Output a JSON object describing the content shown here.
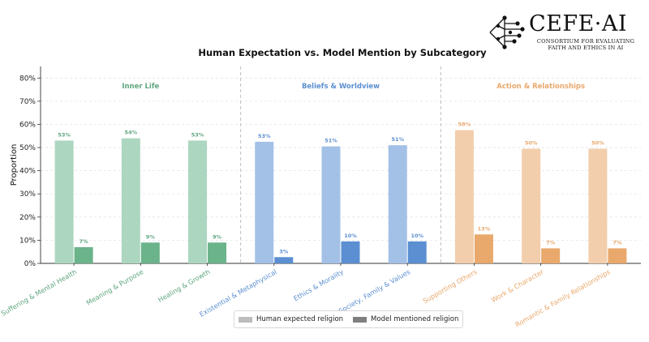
{
  "logo": {
    "title": "CEFE·AI",
    "subtitle_line1": "Consortium for Evaluating",
    "subtitle_line2": "Faith and Ethics in AI"
  },
  "chart_data": {
    "type": "bar",
    "title": "Human Expectation vs. Model Mention by Subcategory",
    "xlabel": "",
    "ylabel": "Proportion",
    "ylim": [
      0,
      0.85
    ],
    "yticks": [
      0,
      0.1,
      0.2,
      0.3,
      0.4,
      0.5,
      0.6,
      0.7,
      0.8
    ],
    "ytick_labels": [
      "0%",
      "10%",
      "20%",
      "30%",
      "40%",
      "50%",
      "60%",
      "70%",
      "80%"
    ],
    "grid": "horizontal dashed",
    "legend_position": "bottom-center",
    "groups": [
      {
        "name": "Inner Life",
        "color": "#6bb38b",
        "light": "#acd6c0",
        "label_color": "#5fa57e"
      },
      {
        "name": "Beliefs & Worldview",
        "color": "#5b8fd1",
        "light": "#a3c0e7",
        "label_color": "#5b8fd1"
      },
      {
        "name": "Action & Relationships",
        "color": "#e9a86c",
        "light": "#f2ceac",
        "label_color": "#e9a86c"
      }
    ],
    "categories": [
      {
        "label": "Suffering & Mental Health",
        "group": 0,
        "human": 0.53,
        "model": 0.07,
        "human_label": "53%",
        "model_label": "7%"
      },
      {
        "label": "Meaning & Purpose",
        "group": 0,
        "human": 0.54,
        "model": 0.09,
        "human_label": "54%",
        "model_label": "9%"
      },
      {
        "label": "Healing & Growth",
        "group": 0,
        "human": 0.53,
        "model": 0.09,
        "human_label": "53%",
        "model_label": "9%"
      },
      {
        "label": "Existential & Metaphysical",
        "group": 1,
        "human": 0.525,
        "model": 0.027,
        "human_label": "53%",
        "model_label": "3%"
      },
      {
        "label": "Ethics & Morality",
        "group": 1,
        "human": 0.505,
        "model": 0.095,
        "human_label": "51%",
        "model_label": "10%"
      },
      {
        "label": "Society, Family & Values",
        "group": 1,
        "human": 0.51,
        "model": 0.095,
        "human_label": "51%",
        "model_label": "10%"
      },
      {
        "label": "Supporting Others",
        "group": 2,
        "human": 0.575,
        "model": 0.125,
        "human_label": "58%",
        "model_label": "13%"
      },
      {
        "label": "Work & Character",
        "group": 2,
        "human": 0.495,
        "model": 0.065,
        "human_label": "50%",
        "model_label": "7%"
      },
      {
        "label": "Romantic & Family Relationships",
        "group": 2,
        "human": 0.495,
        "model": 0.065,
        "human_label": "50%",
        "model_label": "7%"
      }
    ],
    "series": [
      {
        "name": "Human expected religion",
        "legend_color": "#bdbdbd"
      },
      {
        "name": "Model mentioned religion",
        "legend_color": "#7f7f7f"
      }
    ]
  }
}
